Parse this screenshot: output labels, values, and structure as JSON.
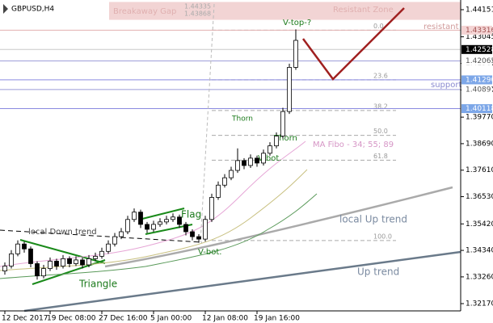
{
  "chart_data": {
    "type": "candlestick",
    "title": "GBPUSD,H4",
    "ylim": [
      1.31874,
      1.44546
    ],
    "yticks": [
      {
        "value": 1.44151,
        "label": "1.44151"
      },
      {
        "value": 1.43045,
        "label": "1.43045"
      },
      {
        "value": 1.4196,
        "label": "1.41960"
      },
      {
        "value": 1.4088,
        "label": "1.40880"
      },
      {
        "value": 1.3977,
        "label": "1.39770"
      },
      {
        "value": 1.3869,
        "label": "1.38690"
      },
      {
        "value": 1.3761,
        "label": "1.37610"
      },
      {
        "value": 1.3653,
        "label": "1.36530"
      },
      {
        "value": 1.3542,
        "label": "1.35420"
      },
      {
        "value": 1.3434,
        "label": "1.34340"
      },
      {
        "value": 1.3326,
        "label": "1.33260"
      },
      {
        "value": 1.3217,
        "label": "1.32170"
      }
    ],
    "categories": [
      "12 Dec 2017",
      null,
      null,
      null,
      null,
      null,
      null,
      "19 Dec 08:00",
      null,
      null,
      null,
      null,
      null,
      null,
      null,
      "27 Dec 16:00",
      null,
      null,
      null,
      null,
      null,
      null,
      null,
      "5 Jan 00:00",
      null,
      null,
      null,
      null,
      null,
      null,
      null,
      "12 Jan 08:00",
      null,
      null,
      null,
      null,
      null,
      null,
      null,
      "19 Jan 16:00",
      null,
      null,
      null,
      null,
      null,
      null
    ],
    "ohlc": [
      [
        1.335,
        1.3385,
        1.3335,
        1.337
      ],
      [
        1.337,
        1.3435,
        1.336,
        1.342
      ],
      [
        1.342,
        1.3475,
        1.341,
        1.346
      ],
      [
        1.346,
        1.347,
        1.3425,
        1.344
      ],
      [
        1.344,
        1.345,
        1.3365,
        1.338
      ],
      [
        1.338,
        1.339,
        1.3315,
        1.333
      ],
      [
        1.333,
        1.3375,
        1.332,
        1.336
      ],
      [
        1.336,
        1.3405,
        1.335,
        1.339
      ],
      [
        1.339,
        1.34,
        1.3355,
        1.337
      ],
      [
        1.337,
        1.3415,
        1.336,
        1.34
      ],
      [
        1.34,
        1.341,
        1.3365,
        1.338
      ],
      [
        1.338,
        1.341,
        1.337,
        1.3395
      ],
      [
        1.3395,
        1.3405,
        1.336,
        1.3375
      ],
      [
        1.3375,
        1.3415,
        1.3365,
        1.34
      ],
      [
        1.34,
        1.3425,
        1.339,
        1.341
      ],
      [
        1.341,
        1.3445,
        1.34,
        1.343
      ],
      [
        1.343,
        1.3475,
        1.342,
        1.346
      ],
      [
        1.346,
        1.3505,
        1.345,
        1.349
      ],
      [
        1.349,
        1.3525,
        1.348,
        1.351
      ],
      [
        1.351,
        1.3575,
        1.35,
        1.356
      ],
      [
        1.356,
        1.3605,
        1.355,
        1.359
      ],
      [
        1.359,
        1.36,
        1.3525,
        1.354
      ],
      [
        1.354,
        1.355,
        1.3505,
        1.352
      ],
      [
        1.352,
        1.3555,
        1.351,
        1.354
      ],
      [
        1.354,
        1.3565,
        1.353,
        1.355
      ],
      [
        1.355,
        1.3575,
        1.354,
        1.356
      ],
      [
        1.356,
        1.3585,
        1.355,
        1.357
      ],
      [
        1.357,
        1.358,
        1.3525,
        1.354
      ],
      [
        1.354,
        1.355,
        1.3495,
        1.351
      ],
      [
        1.351,
        1.352,
        1.3475,
        1.349
      ],
      [
        1.349,
        1.35,
        1.3465,
        1.348
      ],
      [
        1.348,
        1.3575,
        1.347,
        1.356
      ],
      [
        1.356,
        1.3665,
        1.355,
        1.365
      ],
      [
        1.365,
        1.3715,
        1.364,
        1.37
      ],
      [
        1.37,
        1.3745,
        1.369,
        1.373
      ],
      [
        1.373,
        1.3775,
        1.372,
        1.376
      ],
      [
        1.376,
        1.385,
        1.375,
        1.38
      ],
      [
        1.38,
        1.381,
        1.3765,
        1.378
      ],
      [
        1.378,
        1.3825,
        1.377,
        1.381
      ],
      [
        1.381,
        1.382,
        1.3775,
        1.379
      ],
      [
        1.379,
        1.3845,
        1.378,
        1.383
      ],
      [
        1.383,
        1.3875,
        1.382,
        1.386
      ],
      [
        1.386,
        1.3915,
        1.385,
        1.39
      ],
      [
        1.39,
        1.4015,
        1.389,
        1.4
      ],
      [
        1.4,
        1.4195,
        1.399,
        1.418
      ],
      [
        1.418,
        1.4335,
        1.417,
        1.429
      ]
    ],
    "up_color": "#ffffff",
    "down_color": "#000000",
    "gap_zone": {
      "name": "Breakaway Gap",
      "top": 1.44335,
      "bottom": 1.43868,
      "color": "#f2d4d4"
    },
    "zone_label": "Resistant Zone",
    "price_levels": [
      {
        "value": 1.43316,
        "line_color": "#e3b0b0",
        "label_bg": "#f4d4d4",
        "label_color": "#a05050"
      },
      {
        "value": 1.42528,
        "line_color": "#c8c8c8",
        "label_bg": "#000000",
        "label_color": "#ffffff"
      },
      {
        "value": 1.42065,
        "line_color": "#9a9ad8",
        "label_bg": "#ffffff",
        "label_color": "#555555"
      },
      {
        "value": {
          "value": 1.4129,
          "label": "1.41290"
        },
        "line_color": "#8a8ae0",
        "label_bg": "#7da7e8",
        "label_color": "#ffffff"
      },
      {
        "value": 1.40897,
        "line_color": "#9a9ad8",
        "label_bg": "#ffffff",
        "label_color": "#555555"
      },
      {
        "value": 1.40118,
        "line_color": "#8a8ae0",
        "label_bg": "#7da7e8",
        "label_color": "#ffffff"
      }
    ],
    "fibo": {
      "high": 1.43316,
      "low": 1.34741,
      "levels": [
        {
          "value": 0,
          "label": "0.0"
        },
        23.6,
        38.2,
        {
          "value": 50,
          "label": "50.0"
        },
        61.8,
        {
          "value": 100,
          "label": "100.0"
        }
      ]
    },
    "annotations": [
      "V-top-?",
      "resistant",
      "support",
      "Thorn",
      "Thorn",
      "V-bot.",
      "V-bot.",
      "MA Fibo - 34; 55; 89",
      "local  Up trend",
      "Up trend",
      "local Down trend",
      "Flag",
      "Triangle"
    ]
  }
}
